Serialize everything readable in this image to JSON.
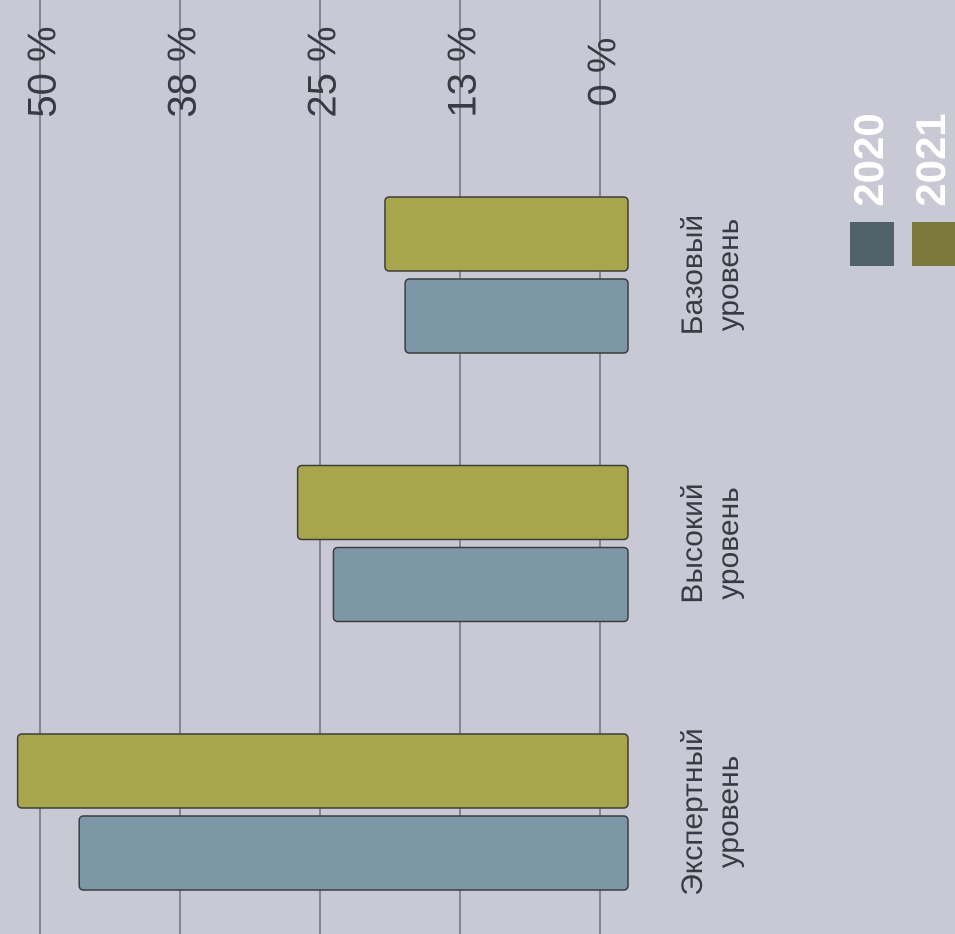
{
  "chart_data": {
    "type": "bar",
    "categories": [
      "Экспертный уровень",
      "Высокий уровень",
      "Базовый уровень"
    ],
    "series": [
      {
        "name": "2020",
        "color": "#7e97a6",
        "values": [
          46.5,
          23.8,
          17.4
        ]
      },
      {
        "name": "2021",
        "color": "#a7a64c",
        "values": [
          52,
          27,
          19.2
        ]
      }
    ],
    "ylim": [
      0,
      50
    ],
    "yticks": [
      {
        "value": 0,
        "label": "0 %"
      },
      {
        "value": 12.5,
        "label": "13 %"
      },
      {
        "value": 25,
        "label": "25 %"
      },
      {
        "value": 37.5,
        "label": "38 %"
      },
      {
        "value": 50,
        "label": "50 %"
      }
    ],
    "grid": true
  }
}
